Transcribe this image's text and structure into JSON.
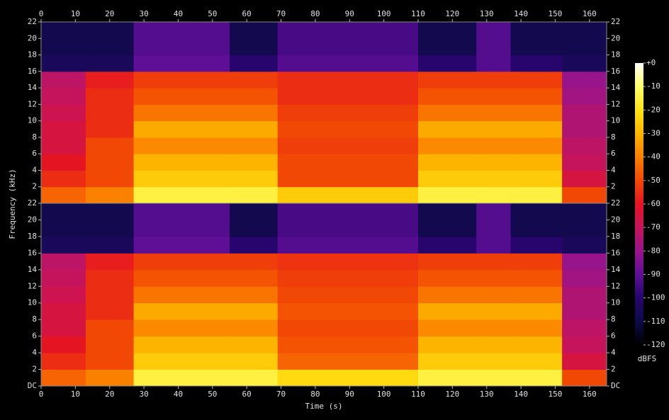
{
  "chart_data": [
    {
      "type": "heatmap",
      "ylabel": "Frequency (kHz)",
      "x_bins": [
        0,
        13,
        27,
        55,
        69,
        110,
        127,
        137,
        152,
        165
      ],
      "y_bins": [
        0,
        2,
        4,
        6,
        8,
        10,
        12,
        14,
        16,
        18,
        20,
        22
      ],
      "values": [
        [
          -45,
          -40,
          -15,
          -15,
          -25,
          -15,
          -15,
          -15,
          -50
        ],
        [
          -55,
          -50,
          -25,
          -25,
          -50,
          -25,
          -25,
          -25,
          -65
        ],
        [
          -60,
          -50,
          -30,
          -30,
          -50,
          -30,
          -30,
          -30,
          -70
        ],
        [
          -65,
          -50,
          -38,
          -38,
          -52,
          -38,
          -38,
          -38,
          -72
        ],
        [
          -65,
          -55,
          -32,
          -32,
          -50,
          -32,
          -32,
          -32,
          -75
        ],
        [
          -68,
          -55,
          -42,
          -42,
          -52,
          -42,
          -42,
          -42,
          -75
        ],
        [
          -70,
          -55,
          -48,
          -48,
          -55,
          -48,
          -48,
          -48,
          -78
        ],
        [
          -72,
          -58,
          -52,
          -52,
          -55,
          -52,
          -52,
          -52,
          -80
        ],
        [
          -105,
          -105,
          -90,
          -100,
          -92,
          -100,
          -92,
          -100,
          -105
        ],
        [
          -108,
          -108,
          -92,
          -108,
          -94,
          -108,
          -92,
          -108,
          -108
        ],
        [
          -108,
          -108,
          -92,
          -108,
          -94,
          -108,
          -92,
          -108,
          -108
        ]
      ],
      "xlim": [
        0,
        165
      ],
      "xticks": [
        0,
        10,
        20,
        30,
        40,
        50,
        60,
        70,
        80,
        90,
        100,
        110,
        120,
        130,
        140,
        150,
        160
      ],
      "ylim": [
        0,
        22
      ],
      "yticks": [
        2,
        4,
        6,
        8,
        10,
        12,
        14,
        16,
        18,
        20,
        22
      ]
    },
    {
      "type": "heatmap",
      "xlabel": "Time (s)",
      "x_bins": [
        0,
        13,
        27,
        55,
        69,
        110,
        127,
        137,
        152,
        165
      ],
      "y_bins": [
        0,
        2,
        4,
        6,
        8,
        10,
        12,
        14,
        16,
        18,
        20,
        22
      ],
      "values": [
        [
          -45,
          -40,
          -15,
          -15,
          -22,
          -15,
          -15,
          -15,
          -50
        ],
        [
          -55,
          -50,
          -25,
          -25,
          -45,
          -25,
          -25,
          -25,
          -65
        ],
        [
          -60,
          -50,
          -30,
          -30,
          -48,
          -30,
          -30,
          -30,
          -70
        ],
        [
          -65,
          -50,
          -38,
          -38,
          -50,
          -38,
          -38,
          -38,
          -72
        ],
        [
          -65,
          -55,
          -32,
          -32,
          -48,
          -32,
          -32,
          -32,
          -75
        ],
        [
          -68,
          -55,
          -42,
          -42,
          -50,
          -42,
          -42,
          -42,
          -75
        ],
        [
          -70,
          -55,
          -48,
          -48,
          -52,
          -48,
          -48,
          -48,
          -78
        ],
        [
          -72,
          -58,
          -52,
          -52,
          -54,
          -52,
          -52,
          -52,
          -80
        ],
        [
          -105,
          -105,
          -90,
          -100,
          -92,
          -100,
          -92,
          -100,
          -105
        ],
        [
          -108,
          -108,
          -92,
          -108,
          -94,
          -108,
          -92,
          -108,
          -108
        ],
        [
          -108,
          -108,
          -92,
          -108,
          -94,
          -108,
          -92,
          -108,
          -108
        ]
      ],
      "xlim": [
        0,
        165
      ],
      "xticks": [
        0,
        10,
        20,
        30,
        40,
        50,
        60,
        70,
        80,
        90,
        100,
        110,
        120,
        130,
        140,
        150,
        160
      ],
      "ylim": [
        0,
        22
      ],
      "yticks": [
        {
          "value": 0,
          "label": "DC"
        },
        2,
        4,
        6,
        8,
        10,
        12,
        14,
        16,
        18,
        20,
        22
      ]
    }
  ],
  "colorbar": {
    "label": "dBFS",
    "lim": [
      -120,
      0
    ],
    "ticks": [
      {
        "value": 0,
        "label": "+0"
      },
      -10,
      -20,
      -30,
      -40,
      -50,
      -60,
      -70,
      -80,
      -90,
      -100,
      -110,
      -120
    ]
  }
}
